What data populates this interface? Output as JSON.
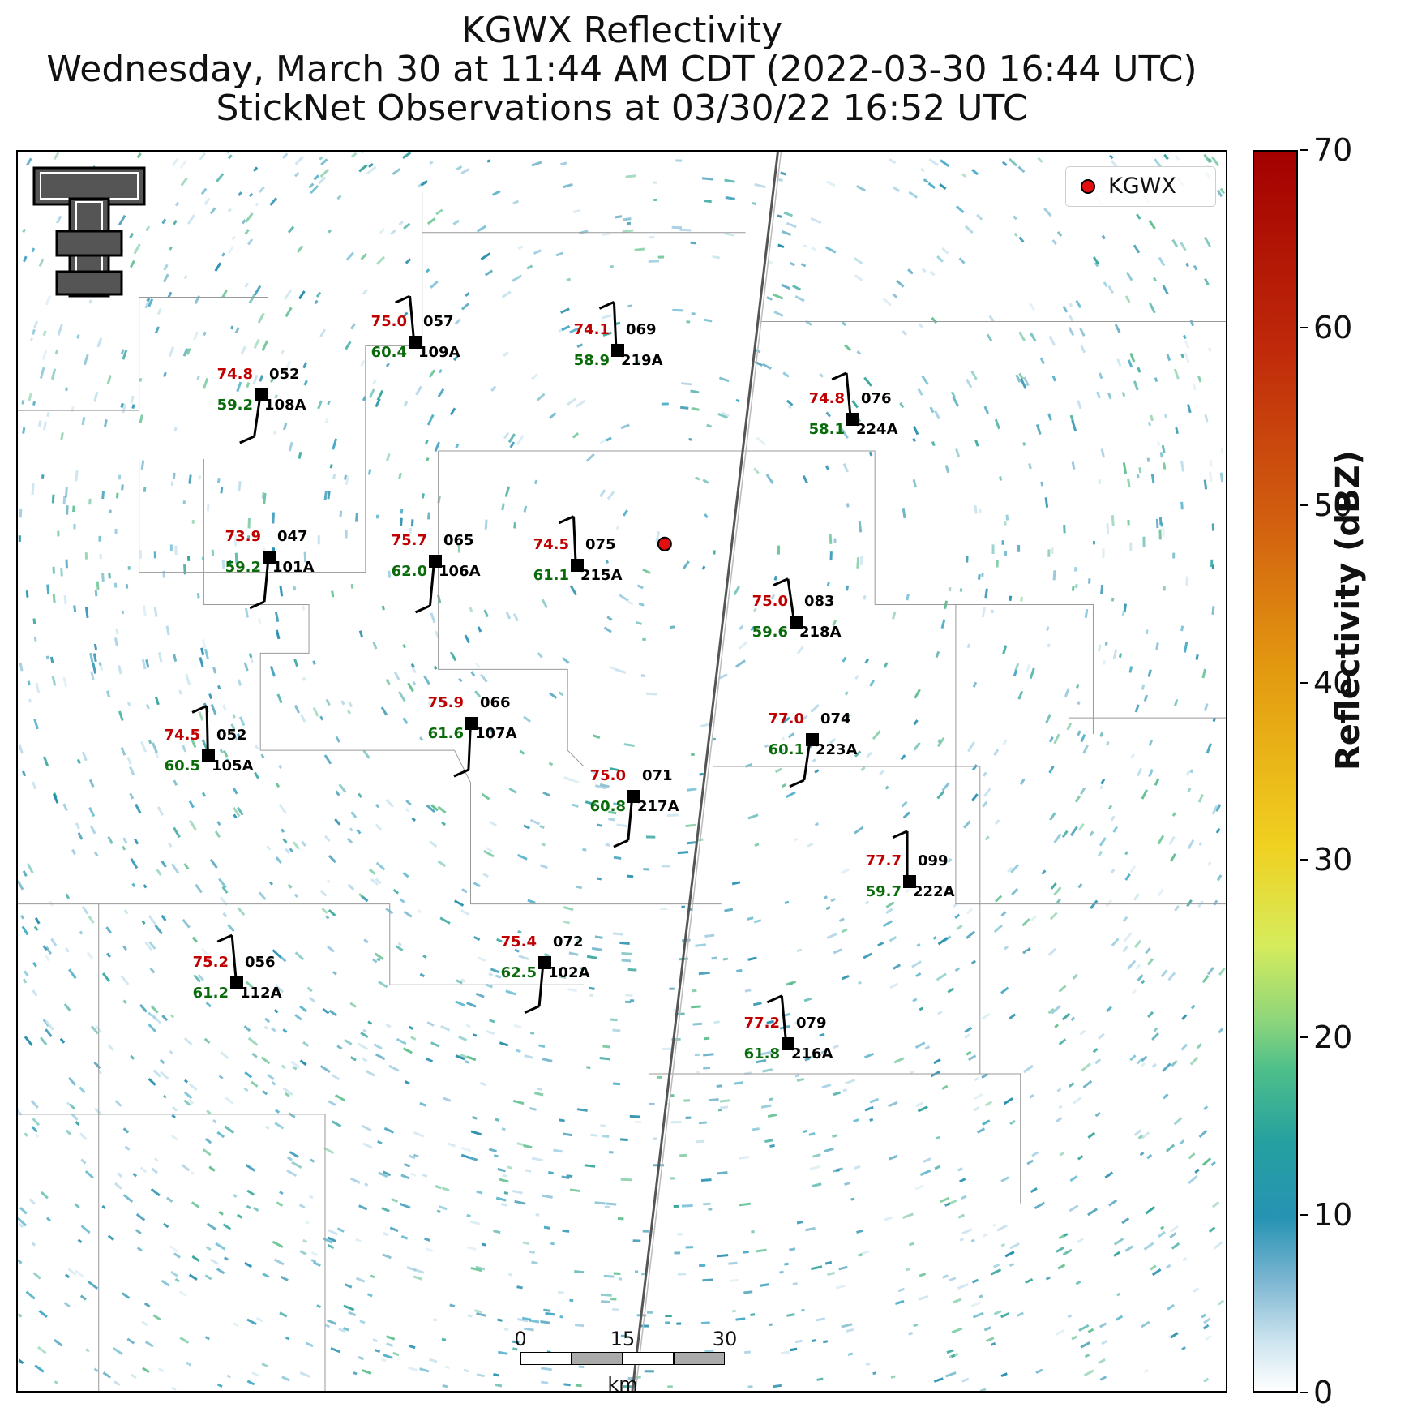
{
  "title": {
    "line1": "KGWX Reflectivity",
    "line2": "Wednesday, March 30 at 11:44 AM CDT (2022-03-30 16:44 UTC)",
    "line3": "StickNet Observations at 03/30/22 16:52 UTC"
  },
  "legend": {
    "label": "KGWX",
    "color": "#e30e0e"
  },
  "colorbar": {
    "title": "Reflectivity (dBZ)",
    "ticks": [
      "70",
      "60",
      "50",
      "40",
      "30",
      "20",
      "10",
      "0"
    ]
  },
  "scalebar": {
    "ticks": [
      "0",
      "15",
      "30"
    ],
    "unit": "km"
  },
  "stations": [
    {
      "id": "109A",
      "temp": "75.0",
      "dew": "60.4",
      "pres": "057"
    },
    {
      "id": "219A",
      "temp": "74.1",
      "dew": "58.9",
      "pres": "069"
    },
    {
      "id": "108A",
      "temp": "74.8",
      "dew": "59.2",
      "pres": "052"
    },
    {
      "id": "224A",
      "temp": "74.8",
      "dew": "58.1",
      "pres": "076"
    },
    {
      "id": "101A",
      "temp": "73.9",
      "dew": "59.2",
      "pres": "047"
    },
    {
      "id": "106A",
      "temp": "75.7",
      "dew": "62.0",
      "pres": "065"
    },
    {
      "id": "215A",
      "temp": "74.5",
      "dew": "61.1",
      "pres": "075"
    },
    {
      "id": "218A",
      "temp": "75.0",
      "dew": "59.6",
      "pres": "083"
    },
    {
      "id": "107A",
      "temp": "75.9",
      "dew": "61.6",
      "pres": "066"
    },
    {
      "id": "223A",
      "temp": "77.0",
      "dew": "60.1",
      "pres": "074"
    },
    {
      "id": "105A",
      "temp": "74.5",
      "dew": "60.5",
      "pres": "052"
    },
    {
      "id": "217A",
      "temp": "75.0",
      "dew": "60.8",
      "pres": "071"
    },
    {
      "id": "222A",
      "temp": "77.7",
      "dew": "59.7",
      "pres": "099"
    },
    {
      "id": "112A",
      "temp": "75.2",
      "dew": "61.2",
      "pres": "056"
    },
    {
      "id": "102A",
      "temp": "75.4",
      "dew": "62.5",
      "pres": "072"
    },
    {
      "id": "216A",
      "temp": "77.2",
      "dew": "61.8",
      "pres": "079"
    }
  ]
}
